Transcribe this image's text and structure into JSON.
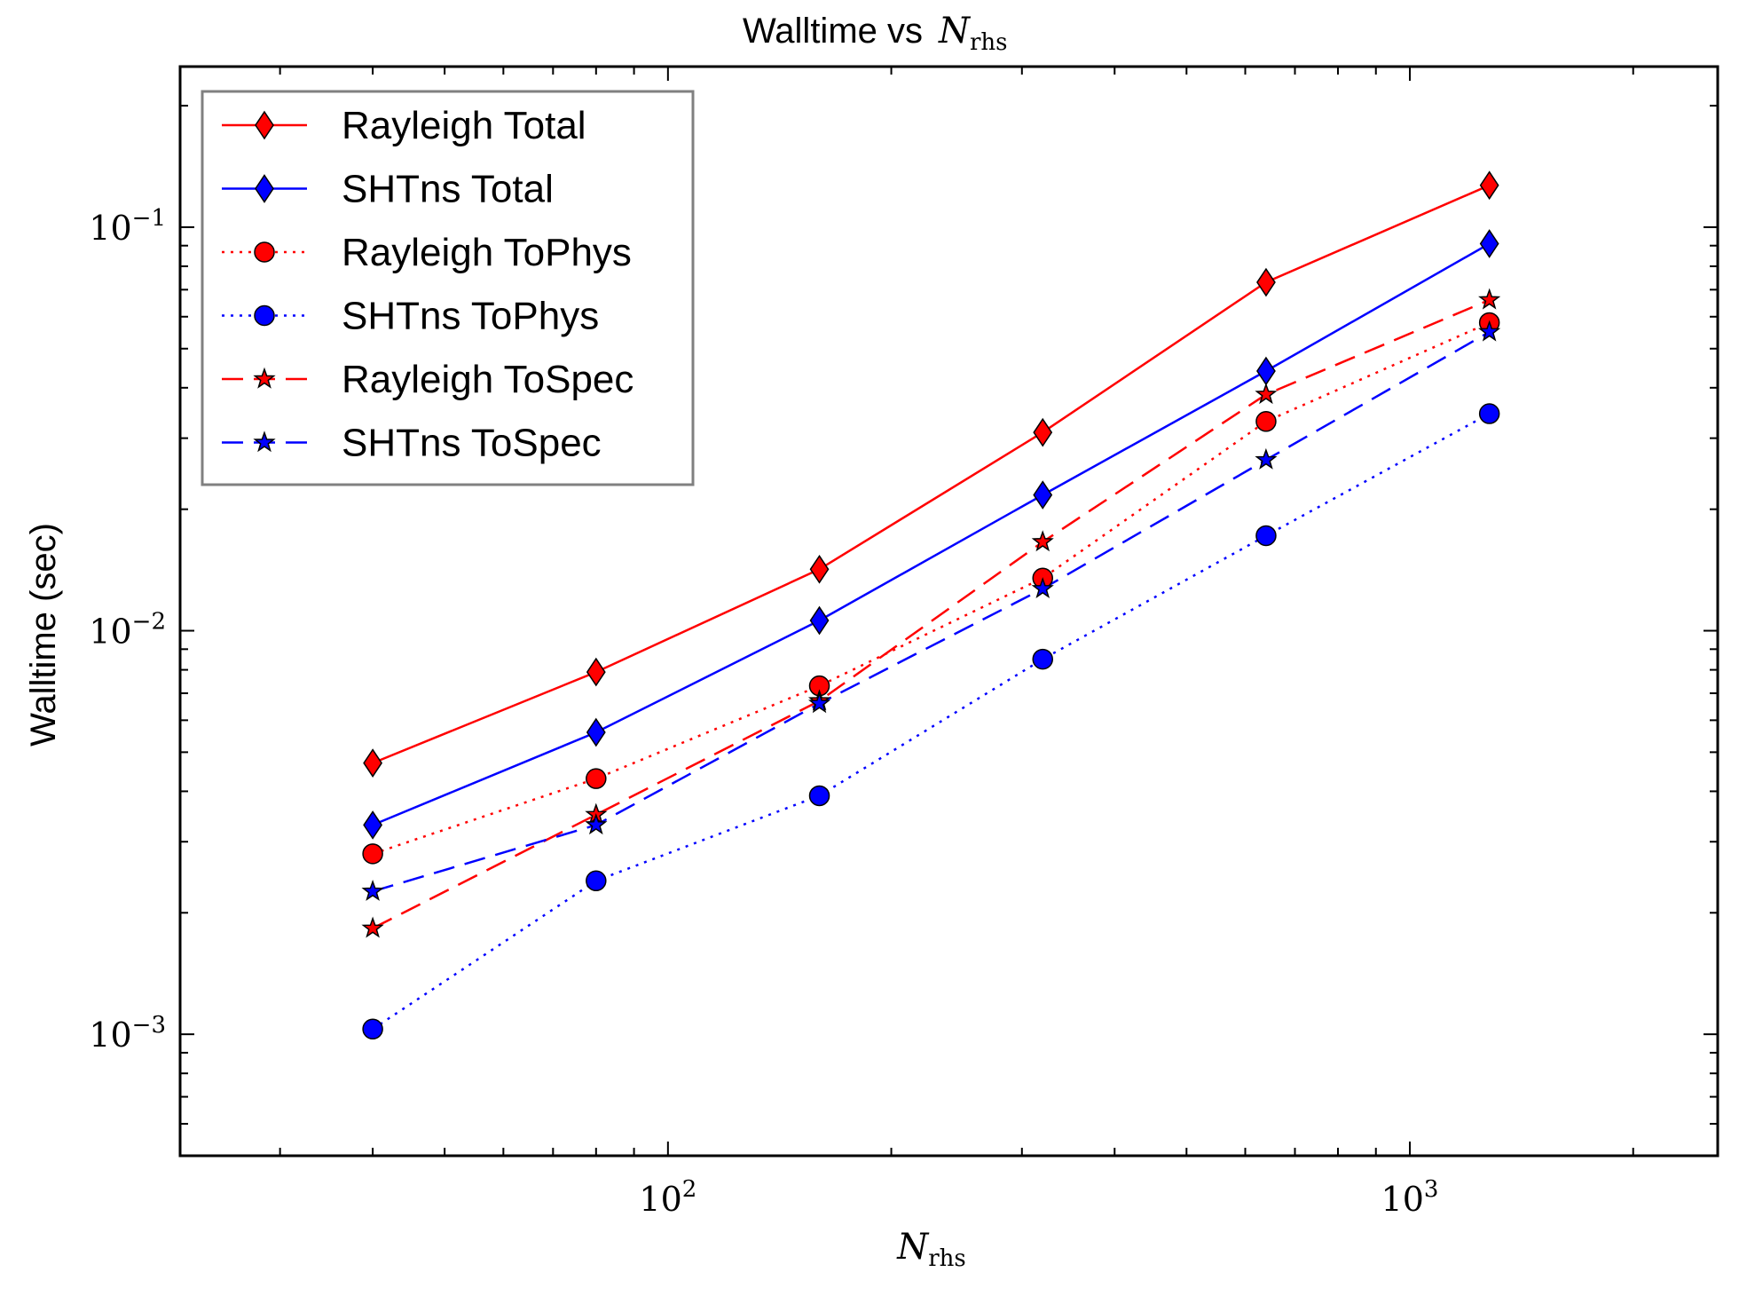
{
  "chart_data": {
    "type": "line",
    "title": "Walltime vs",
    "title_symbol": "N",
    "title_subscript": "rhs",
    "xlabel_symbol": "N",
    "xlabel_subscript": "rhs",
    "ylabel": "Walltime (sec)",
    "xscale": "log",
    "yscale": "log",
    "xlim": [
      22,
      2600
    ],
    "ylim": [
      0.0005,
      0.25
    ],
    "x_ticks": [
      {
        "value": 100,
        "base": "10",
        "exp": "2"
      },
      {
        "value": 1000,
        "base": "10",
        "exp": "3"
      }
    ],
    "y_ticks": [
      {
        "value": 0.001,
        "base": "10",
        "exp": "−3"
      },
      {
        "value": 0.01,
        "base": "10",
        "exp": "−2"
      },
      {
        "value": 0.1,
        "base": "10",
        "exp": "−1"
      }
    ],
    "grid": false,
    "legend_position": "top-left",
    "x": [
      40,
      80,
      160,
      320,
      640,
      1280
    ],
    "series": [
      {
        "name": "Rayleigh Total",
        "color": "#ff0000",
        "dash": "solid",
        "marker": "diamond",
        "values": [
          0.0047,
          0.0079,
          0.0142,
          0.031,
          0.073,
          0.127
        ]
      },
      {
        "name": "SHTns Total",
        "color": "#0000ff",
        "dash": "solid",
        "marker": "diamond",
        "values": [
          0.0033,
          0.0056,
          0.0106,
          0.0217,
          0.044,
          0.091
        ]
      },
      {
        "name": "Rayleigh ToPhys",
        "color": "#ff0000",
        "dash": "dotted",
        "marker": "circle",
        "values": [
          0.0028,
          0.0043,
          0.0073,
          0.0135,
          0.033,
          0.058
        ]
      },
      {
        "name": "SHTns ToPhys",
        "color": "#0000ff",
        "dash": "dotted",
        "marker": "circle",
        "values": [
          0.00103,
          0.0024,
          0.0039,
          0.0085,
          0.0172,
          0.0345
        ]
      },
      {
        "name": "Rayleigh ToSpec",
        "color": "#ff0000",
        "dash": "dashed",
        "marker": "star",
        "values": [
          0.00183,
          0.0035,
          0.0067,
          0.0166,
          0.0385,
          0.066
        ]
      },
      {
        "name": "SHTns ToSpec",
        "color": "#0000ff",
        "dash": "dashed",
        "marker": "star",
        "values": [
          0.00226,
          0.0033,
          0.0066,
          0.0127,
          0.0265,
          0.055
        ]
      }
    ]
  }
}
